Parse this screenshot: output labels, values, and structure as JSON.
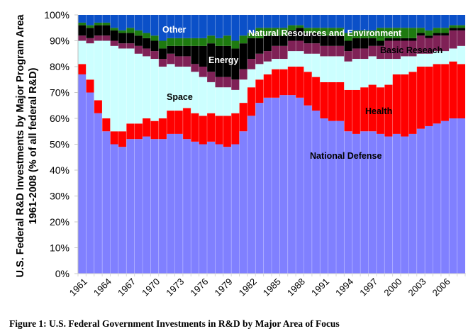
{
  "caption": "Figure 1: U.S. Federal Government Investments in R&D by Major Area of Focus",
  "chart_data": {
    "type": "bar",
    "stacked": true,
    "normalized_percent": true,
    "title": "",
    "ylabel_line1": "U.S. Federal R&D Investments by Major Program Area",
    "ylabel_line2": "1961-2008 (% of all federal R&D)",
    "xlabel": "",
    "ylim": [
      0,
      100
    ],
    "yticks": [
      "0%",
      "10%",
      "20%",
      "30%",
      "40%",
      "50%",
      "60%",
      "70%",
      "80%",
      "90%",
      "100%"
    ],
    "xtick_labels": [
      "1961",
      "1964",
      "1967",
      "1970",
      "1973",
      "1976",
      "1979",
      "1982",
      "1985",
      "1988",
      "1991",
      "1994",
      "1997",
      "2000",
      "2003",
      "2006"
    ],
    "categories": [
      1961,
      1962,
      1963,
      1964,
      1965,
      1966,
      1967,
      1968,
      1969,
      1970,
      1971,
      1972,
      1973,
      1974,
      1975,
      1976,
      1977,
      1978,
      1979,
      1980,
      1981,
      1982,
      1983,
      1984,
      1985,
      1986,
      1987,
      1988,
      1989,
      1990,
      1991,
      1992,
      1993,
      1994,
      1995,
      1996,
      1997,
      1998,
      1999,
      2000,
      2001,
      2002,
      2003,
      2004,
      2005,
      2006,
      2007,
      2008
    ],
    "grid": false,
    "series": [
      {
        "name": "National Defense",
        "color": "#8080ff",
        "values": [
          77,
          70,
          62,
          55,
          50,
          49,
          52,
          52,
          53,
          52,
          52,
          54,
          54,
          52,
          51,
          50,
          51,
          50,
          49,
          50,
          55,
          61,
          66,
          68,
          68,
          69,
          69,
          68,
          65,
          63,
          60,
          59,
          59,
          55,
          54,
          55,
          55,
          54,
          53,
          54,
          53,
          54,
          56,
          57,
          58,
          59,
          60,
          60
        ]
      },
      {
        "name": "Health",
        "color": "#ff0000",
        "values": [
          4,
          5,
          5,
          5,
          5,
          6,
          6,
          6,
          7,
          7,
          8,
          9,
          9,
          12,
          11,
          11,
          11,
          11,
          12,
          12,
          11,
          11,
          9,
          9,
          11,
          10,
          11,
          12,
          13,
          13,
          14,
          15,
          15,
          16,
          17,
          17,
          18,
          18,
          20,
          23,
          24,
          24,
          24,
          23,
          23,
          22,
          22,
          21
        ]
      },
      {
        "name": "Space",
        "color": "#ccffff",
        "values": [
          9,
          14,
          23,
          30,
          33,
          32,
          29,
          27,
          24,
          24,
          20,
          18,
          17,
          16,
          16,
          15,
          12,
          11,
          11,
          9,
          9,
          7,
          6,
          5,
          4,
          4,
          6,
          6,
          7,
          9,
          10,
          10,
          10,
          11,
          12,
          11,
          11,
          11,
          10,
          6,
          7,
          6,
          5,
          5,
          5,
          5,
          5,
          7
        ]
      },
      {
        "name": "Basic Reseach",
        "color": "#7f2156",
        "values": [
          2,
          2,
          2,
          2,
          2,
          2,
          2,
          3,
          3,
          3,
          3,
          4,
          4,
          4,
          3,
          4,
          4,
          4,
          4,
          4,
          4,
          4,
          4,
          4,
          5,
          5,
          4,
          4,
          4,
          4,
          4,
          4,
          4,
          4,
          4,
          4,
          4,
          5,
          7,
          7,
          6,
          6,
          7,
          6,
          6,
          6,
          7,
          6
        ]
      },
      {
        "name": "Energy",
        "color": "#000000",
        "values": [
          4,
          4,
          4,
          4,
          4,
          4,
          4,
          4,
          4,
          4,
          4,
          3,
          4,
          4,
          7,
          8,
          11,
          12,
          12,
          12,
          10,
          8,
          6,
          6,
          4,
          4,
          4,
          5,
          4,
          4,
          4,
          4,
          4,
          4,
          4,
          4,
          3,
          2,
          1,
          1,
          1,
          1,
          1,
          1,
          1,
          1,
          1,
          1
        ]
      },
      {
        "name": "Natural Resources and Environment",
        "color": "#1e7a10",
        "values": [
          1,
          1,
          1,
          1,
          1,
          1,
          2,
          2,
          2,
          2,
          3,
          3,
          3,
          3,
          3,
          3,
          3,
          3,
          4,
          3,
          3,
          2,
          4,
          3,
          3,
          3,
          2,
          1,
          2,
          2,
          3,
          3,
          3,
          3,
          3,
          3,
          3,
          5,
          4,
          4,
          4,
          4,
          2,
          2,
          2,
          2,
          1,
          1
        ]
      },
      {
        "name": "Other",
        "color": "#0b50c8",
        "values": [
          3,
          4,
          3,
          3,
          5,
          6,
          5,
          6,
          7,
          8,
          10,
          9,
          9,
          9,
          9,
          9,
          8,
          9,
          8,
          10,
          8,
          7,
          5,
          5,
          5,
          5,
          4,
          4,
          5,
          5,
          5,
          5,
          5,
          7,
          6,
          6,
          6,
          5,
          5,
          5,
          5,
          5,
          5,
          6,
          5,
          5,
          4,
          4
        ]
      }
    ],
    "annotations": [
      {
        "text": "Other",
        "series": "Other",
        "color": "#ffffff"
      },
      {
        "text": "Natural Resources and Environment",
        "series": "Natural Resources and Environment",
        "color": "#ffffff"
      },
      {
        "text": "Energy",
        "series": "Energy",
        "color": "#ffffff"
      },
      {
        "text": "Basic Reseach",
        "series": "Basic Reseach",
        "color": "#000000"
      },
      {
        "text": "Space",
        "series": "Space",
        "color": "#000000"
      },
      {
        "text": "Health",
        "series": "Health",
        "color": "#000000"
      },
      {
        "text": "National Defense",
        "series": "National Defense",
        "color": "#000000"
      }
    ]
  }
}
